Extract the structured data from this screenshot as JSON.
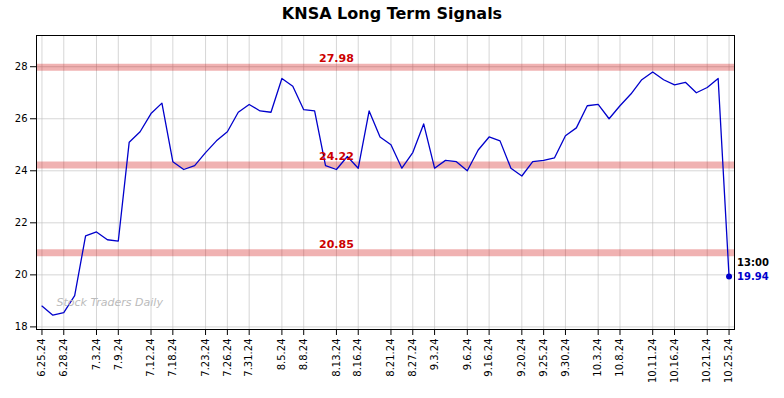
{
  "chart_data": {
    "type": "line",
    "title": "KNSA Long Term Signals",
    "watermark": "Stock Traders Daily",
    "categories": [
      "6.25.24",
      null,
      "6.28.24",
      null,
      null,
      "7.3.24",
      null,
      "7.9.24",
      null,
      null,
      "7.12.24",
      null,
      "7.18.24",
      null,
      null,
      "7.23.24",
      null,
      "7.26.24",
      null,
      "7.31.24",
      null,
      null,
      "8.5.24",
      null,
      "8.8.24",
      null,
      null,
      "8.13.24",
      null,
      "8.16.24",
      null,
      null,
      "8.21.24",
      null,
      "8.27.24",
      null,
      "9.3.24",
      null,
      null,
      "9.6.24",
      null,
      "9.16.24",
      null,
      null,
      "9.20.24",
      null,
      "9.25.24",
      null,
      "9.30.24",
      null,
      null,
      "10.3.24",
      null,
      "10.8.24",
      null,
      null,
      "10.11.24",
      null,
      "10.16.24",
      null,
      null,
      "10.21.24",
      null,
      "10.25.24"
    ],
    "values": [
      18.8,
      18.45,
      18.55,
      19.2,
      21.5,
      21.65,
      21.35,
      21.3,
      25.1,
      25.5,
      26.2,
      26.6,
      24.35,
      24.05,
      24.2,
      24.7,
      25.15,
      25.5,
      26.25,
      26.55,
      26.3,
      26.25,
      27.55,
      27.25,
      26.35,
      26.3,
      24.2,
      24.05,
      24.55,
      24.1,
      26.3,
      25.3,
      25.0,
      24.1,
      24.7,
      25.8,
      24.1,
      24.4,
      24.35,
      24.0,
      24.8,
      25.3,
      25.15,
      24.1,
      23.8,
      24.35,
      24.4,
      24.5,
      25.35,
      25.65,
      26.5,
      26.55,
      26.0,
      26.5,
      26.95,
      27.5,
      27.8,
      27.5,
      27.3,
      27.4,
      27.0,
      27.2,
      27.55,
      19.94
    ],
    "color": "#0000cc",
    "hlines": [
      {
        "value": 27.98,
        "label": "27.98",
        "color": "#cc0000"
      },
      {
        "value": 24.22,
        "label": "24.22",
        "color": "#cc0000"
      },
      {
        "value": 20.85,
        "label": "20.85",
        "color": "#cc0000"
      }
    ],
    "annotations": [
      {
        "text": "13:00"
      },
      {
        "text": "19.94"
      }
    ],
    "ylim": [
      17.9,
      29.2
    ],
    "yticks": [
      18,
      20,
      22,
      24,
      26,
      28
    ],
    "grid": true
  }
}
